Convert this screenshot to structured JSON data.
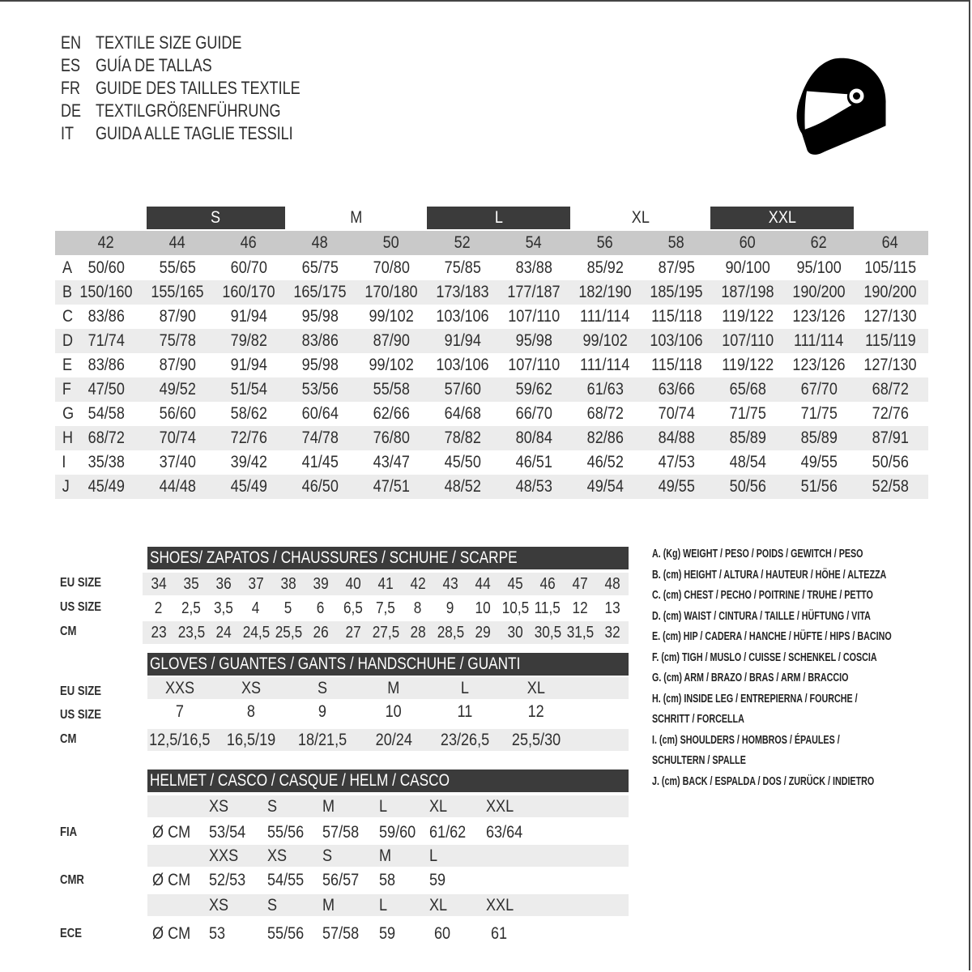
{
  "header": {
    "lines": [
      {
        "code": "EN",
        "title": "TEXTILE SIZE GUIDE"
      },
      {
        "code": "ES",
        "title": "GUÍA DE TALLAS"
      },
      {
        "code": "FR",
        "title": "GUIDE DES TAILLES TEXTILE"
      },
      {
        "code": "DE",
        "title": "TEXTILGRÖßENFÜHRUNG"
      },
      {
        "code": "IT",
        "title": "GUIDA ALLE TAGLIE TESSILI"
      }
    ],
    "icon": "helmet-icon"
  },
  "textile": {
    "bands": [
      "S",
      "M",
      "L",
      "XL",
      "XXL"
    ],
    "sizes": [
      "42",
      "44",
      "46",
      "48",
      "50",
      "52",
      "54",
      "56",
      "58",
      "60",
      "62",
      "64"
    ],
    "rows": [
      {
        "label": "A",
        "values": [
          "50/60",
          "55/65",
          "60/70",
          "65/75",
          "70/80",
          "75/85",
          "83/88",
          "85/92",
          "87/95",
          "90/100",
          "95/100",
          "105/115"
        ]
      },
      {
        "label": "B",
        "values": [
          "150/160",
          "155/165",
          "160/170",
          "165/175",
          "170/180",
          "173/183",
          "177/187",
          "182/190",
          "185/195",
          "187/198",
          "190/200",
          "190/200"
        ]
      },
      {
        "label": "C",
        "values": [
          "83/86",
          "87/90",
          "91/94",
          "95/98",
          "99/102",
          "103/106",
          "107/110",
          "111/114",
          "115/118",
          "119/122",
          "123/126",
          "127/130"
        ]
      },
      {
        "label": "D",
        "values": [
          "71/74",
          "75/78",
          "79/82",
          "83/86",
          "87/90",
          "91/94",
          "95/98",
          "99/102",
          "103/106",
          "107/110",
          "111/114",
          "115/119"
        ]
      },
      {
        "label": "E",
        "values": [
          "83/86",
          "87/90",
          "91/94",
          "95/98",
          "99/102",
          "103/106",
          "107/110",
          "111/114",
          "115/118",
          "119/122",
          "123/126",
          "127/130"
        ]
      },
      {
        "label": "F",
        "values": [
          "47/50",
          "49/52",
          "51/54",
          "53/56",
          "55/58",
          "57/60",
          "59/62",
          "61/63",
          "63/66",
          "65/68",
          "67/70",
          "68/72"
        ]
      },
      {
        "label": "G",
        "values": [
          "54/58",
          "56/60",
          "58/62",
          "60/64",
          "62/66",
          "64/68",
          "66/70",
          "68/72",
          "70/74",
          "71/75",
          "71/75",
          "72/76"
        ]
      },
      {
        "label": "H",
        "values": [
          "68/72",
          "70/74",
          "72/76",
          "74/78",
          "76/80",
          "78/82",
          "80/84",
          "82/86",
          "84/88",
          "85/89",
          "85/89",
          "87/91"
        ]
      },
      {
        "label": "I",
        "values": [
          "35/38",
          "37/40",
          "39/42",
          "41/45",
          "43/47",
          "45/50",
          "46/51",
          "46/52",
          "47/53",
          "48/54",
          "49/55",
          "50/56"
        ]
      },
      {
        "label": "J",
        "values": [
          "45/49",
          "44/48",
          "45/49",
          "46/50",
          "47/51",
          "48/52",
          "48/53",
          "49/54",
          "49/55",
          "50/56",
          "51/56",
          "52/58"
        ]
      }
    ]
  },
  "shoes": {
    "title": "SHOES/ ZAPATOS / CHAUSSURES / SCHUHE / SCARPE",
    "rows": [
      {
        "label": "EU SIZE",
        "values": [
          "34",
          "35",
          "36",
          "37",
          "38",
          "39",
          "40",
          "41",
          "42",
          "43",
          "44",
          "45",
          "46",
          "47",
          "48"
        ]
      },
      {
        "label": "US SIZE",
        "values": [
          "2",
          "2,5",
          "3,5",
          "4",
          "5",
          "6",
          "6,5",
          "7,5",
          "8",
          "9",
          "10",
          "10,5",
          "11,5",
          "12",
          "13"
        ]
      },
      {
        "label": "CM",
        "values": [
          "23",
          "23,5",
          "24",
          "24,5",
          "25,5",
          "26",
          "27",
          "27,5",
          "28",
          "28,5",
          "29",
          "30",
          "30,5",
          "31,5",
          "32"
        ]
      }
    ]
  },
  "gloves": {
    "title": "GLOVES / GUANTES / GANTS / HANDSCHUHE / GUANTI",
    "rows": [
      {
        "label": "EU SIZE",
        "values": [
          "XXS",
          "XS",
          "S",
          "M",
          "L",
          "XL"
        ]
      },
      {
        "label": "US SIZE",
        "values": [
          "7",
          "8",
          "9",
          "10",
          "11",
          "12"
        ]
      },
      {
        "label": "CM",
        "values": [
          "12,5/16,5",
          "16,5/19",
          "18/21,5",
          "20/24",
          "23/26,5",
          "25,5/30"
        ]
      }
    ]
  },
  "helmet": {
    "title": "HELMET / CASCO / CASQUE / HELM / CASCO",
    "unit": "Ø CM",
    "groups": [
      {
        "label": "FIA",
        "sizes": [
          "XS",
          "S",
          "M",
          "L",
          "XL",
          "XXL"
        ],
        "values": [
          "53/54",
          "55/56",
          "57/58",
          "59/60",
          "61/62",
          "63/64"
        ]
      },
      {
        "label": "CMR",
        "sizes": [
          "XXS",
          "XS",
          "S",
          "M",
          "L"
        ],
        "values": [
          "52/53",
          "54/55",
          "56/57",
          "58",
          "59"
        ]
      },
      {
        "label": "ECE",
        "sizes": [
          "XS",
          "S",
          "M",
          "L",
          "XL",
          "XXL"
        ],
        "values": [
          "53",
          "55/56",
          "57/58",
          "59",
          "60",
          "61"
        ]
      }
    ]
  },
  "legend": [
    "A. (Kg) WEIGHT / PESO / POIDS / GEWITCH / PESO",
    "B. (cm) HEIGHT / ALTURA / HAUTEUR / HÖHE / ALTEZZA",
    "C. (cm) CHEST / PECHO / POITRINE / TRUHE / PETTO",
    "D. (cm) WAIST / CINTURA / TAILLE / HÜFTUNG / VITA",
    "E. (cm) HIP / CADERA / HANCHE / HÜFTE / HIPS /  BACINO",
    "F.  (cm) TIGH / MUSLO / CUISSE / SCHENKEL / COSCIA",
    "G. (cm) ARM  / BRAZO / BRAS / ARM / BRACCIO",
    "H. (cm) INSIDE LEG / ENTREPIERNA / FOURCHE /",
    "SCHRITT / FORCELLA",
    "I.  (cm) SHOULDERS / HOMBROS / ÉPAULES /",
    "SCHULTERN / SPALLE",
    "J. (cm) BACK / ESPALDA / DOS / ZURÜCK / INDIETRO"
  ],
  "colors": {
    "dark_bar": "#3b3b3b",
    "size_row": "#c9c9c9",
    "light_row": "#ececec"
  }
}
